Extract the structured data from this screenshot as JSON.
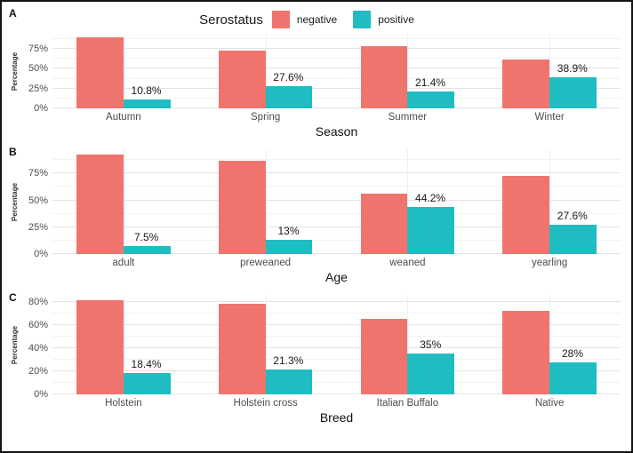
{
  "figure": {
    "legend": {
      "title": "Serostatus",
      "items": [
        {
          "label": "negative",
          "color": "#F0746E"
        },
        {
          "label": "positive",
          "color": "#1FBDC1"
        }
      ]
    }
  },
  "chart_data": [
    {
      "type": "bar",
      "panel_label": "A",
      "xlabel": "Season",
      "ylabel": "Percentage",
      "categories": [
        "Autumn",
        "Spring",
        "Summer",
        "Winter"
      ],
      "series": [
        {
          "name": "negative",
          "values": [
            89.2,
            72.4,
            78.6,
            61.1
          ]
        },
        {
          "name": "positive",
          "values": [
            10.8,
            27.6,
            21.4,
            38.9
          ]
        }
      ],
      "value_labels": [
        "10.8%",
        "27.6%",
        "21.4%",
        "38.9%"
      ],
      "yticks": [
        0,
        25,
        50,
        75
      ],
      "ytick_labels": [
        "0%",
        "25%",
        "50%",
        "75%"
      ],
      "ylim": [
        0,
        94
      ],
      "grid": "on",
      "legend_position": "top"
    },
    {
      "type": "bar",
      "panel_label": "B",
      "xlabel": "Age",
      "ylabel": "Percentage",
      "categories": [
        "adult",
        "preweaned",
        "weaned",
        "yearling"
      ],
      "series": [
        {
          "name": "negative",
          "values": [
            92.5,
            87,
            55.8,
            72.4
          ]
        },
        {
          "name": "positive",
          "values": [
            7.5,
            13,
            44.2,
            27.6
          ]
        }
      ],
      "value_labels": [
        "7.5%",
        "13%",
        "44.2%",
        "27.6%"
      ],
      "yticks": [
        0,
        25,
        50,
        75
      ],
      "ytick_labels": [
        "0%",
        "25%",
        "50%",
        "75%"
      ],
      "ylim": [
        0,
        97.5
      ],
      "grid": "on",
      "legend_position": "none"
    },
    {
      "type": "bar",
      "panel_label": "C",
      "xlabel": "Breed",
      "ylabel": "Percentage",
      "categories": [
        "Holstein",
        "Holstein cross",
        "Italian Buffalo",
        "Native"
      ],
      "series": [
        {
          "name": "negative",
          "values": [
            81.6,
            78.7,
            65,
            72
          ]
        },
        {
          "name": "positive",
          "values": [
            18.4,
            21.3,
            35,
            28
          ]
        }
      ],
      "value_labels": [
        "18.4%",
        "21.3%",
        "35%",
        "28%"
      ],
      "yticks": [
        0,
        20,
        40,
        60,
        80
      ],
      "ytick_labels": [
        "0%",
        "20%",
        "40%",
        "60%",
        "80%"
      ],
      "ylim": [
        0,
        86
      ],
      "grid": "on",
      "legend_position": "none"
    }
  ]
}
